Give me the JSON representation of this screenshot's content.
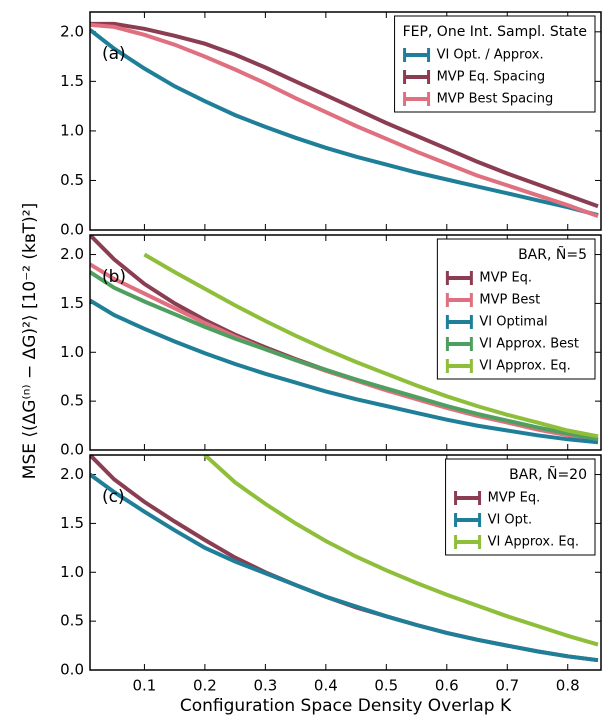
{
  "chart_data": [
    {
      "type": "line",
      "label": "(a)",
      "legend_title": "FEP, One Int. Sampl. State",
      "legend_loc": "upper right",
      "x": [
        0.01,
        0.05,
        0.1,
        0.15,
        0.2,
        0.25,
        0.3,
        0.35,
        0.4,
        0.45,
        0.5,
        0.55,
        0.6,
        0.65,
        0.7,
        0.75,
        0.8,
        0.85
      ],
      "xlim": [
        0.01,
        0.855
      ],
      "ylim": [
        0,
        2.2
      ],
      "yticks": [
        {
          "value": 0,
          "label": "0.0"
        },
        {
          "value": 0.5,
          "label": "0.5"
        },
        {
          "value": 1,
          "label": "1.0"
        },
        {
          "value": 1.5,
          "label": "1.5"
        },
        {
          "value": 2,
          "label": "2.0"
        }
      ],
      "series": [
        {
          "name": "VI Opt. / Approx.",
          "color": "#1f7f99",
          "values": [
            2.02,
            1.83,
            1.63,
            1.45,
            1.3,
            1.16,
            1.04,
            0.93,
            0.83,
            0.74,
            0.66,
            0.58,
            0.51,
            0.44,
            0.37,
            0.3,
            0.23,
            0.15
          ]
        },
        {
          "name": "MVP Eq. Spacing",
          "color": "#8b3d52",
          "values": [
            2.08,
            2.08,
            2.03,
            1.96,
            1.88,
            1.77,
            1.64,
            1.5,
            1.36,
            1.22,
            1.08,
            0.95,
            0.82,
            0.69,
            0.57,
            0.46,
            0.35,
            0.24
          ]
        },
        {
          "name": "MVP Best Spacing",
          "color": "#e07080",
          "values": [
            2.07,
            2.05,
            1.97,
            1.87,
            1.75,
            1.62,
            1.48,
            1.33,
            1.19,
            1.05,
            0.92,
            0.79,
            0.67,
            0.55,
            0.45,
            0.35,
            0.25,
            0.14
          ]
        }
      ]
    },
    {
      "type": "line",
      "label": "(b)",
      "legend_title": "BAR, Ñ=5",
      "legend_loc": "upper right",
      "ylabel": "MSE  ⟨(ΔG⁽ⁿ⁾ − ΔG)²⟩  [10⁻² (kʙT)²]",
      "x": [
        0.01,
        0.05,
        0.1,
        0.15,
        0.2,
        0.25,
        0.3,
        0.35,
        0.4,
        0.45,
        0.5,
        0.55,
        0.6,
        0.65,
        0.7,
        0.75,
        0.8,
        0.85
      ],
      "xlim": [
        0.01,
        0.855
      ],
      "ylim": [
        0,
        2.2
      ],
      "yticks": [
        {
          "value": 0,
          "label": "0.0"
        },
        {
          "value": 0.5,
          "label": "0.5"
        },
        {
          "value": 1,
          "label": "1.0"
        },
        {
          "value": 1.5,
          "label": "1.5"
        },
        {
          "value": 2,
          "label": "2.0"
        }
      ],
      "series": [
        {
          "name": "MVP Eq.",
          "color": "#8b3d52",
          "values": [
            2.2,
            1.95,
            1.7,
            1.5,
            1.33,
            1.18,
            1.05,
            0.93,
            0.82,
            0.72,
            0.62,
            0.53,
            0.44,
            0.36,
            0.29,
            0.22,
            0.16,
            0.11
          ]
        },
        {
          "name": "MVP Best",
          "color": "#e07080",
          "values": [
            1.9,
            1.75,
            1.6,
            1.45,
            1.3,
            1.16,
            1.03,
            0.92,
            0.81,
            0.71,
            0.61,
            0.52,
            0.43,
            0.35,
            0.28,
            0.21,
            0.15,
            0.1
          ]
        },
        {
          "name": "VI Optimal",
          "color": "#1f7f99",
          "values": [
            1.53,
            1.38,
            1.24,
            1.11,
            0.99,
            0.88,
            0.78,
            0.69,
            0.6,
            0.52,
            0.45,
            0.38,
            0.31,
            0.25,
            0.2,
            0.15,
            0.11,
            0.08
          ]
        },
        {
          "name": "VI Approx. Best",
          "color": "#4fa060",
          "values": [
            1.82,
            1.66,
            1.52,
            1.39,
            1.26,
            1.14,
            1.03,
            0.92,
            0.82,
            0.72,
            0.63,
            0.54,
            0.45,
            0.37,
            0.3,
            0.23,
            0.17,
            0.11
          ]
        },
        {
          "name": "VI Approx. Eq.",
          "color": "#8fbf3a",
          "values": [
            null,
            null,
            2.0,
            1.82,
            1.65,
            1.48,
            1.32,
            1.17,
            1.03,
            0.9,
            0.78,
            0.66,
            0.55,
            0.45,
            0.36,
            0.28,
            0.2,
            0.14
          ]
        }
      ]
    },
    {
      "type": "line",
      "label": "(c)",
      "legend_title": "BAR, Ñ=20",
      "legend_loc": "upper right",
      "xlabel": "Configuration Space Density Overlap K",
      "x": [
        0.01,
        0.05,
        0.1,
        0.15,
        0.2,
        0.25,
        0.3,
        0.35,
        0.4,
        0.45,
        0.5,
        0.55,
        0.6,
        0.65,
        0.7,
        0.75,
        0.8,
        0.85
      ],
      "xlim": [
        0.01,
        0.855
      ],
      "ylim": [
        0,
        2.2
      ],
      "xticks": [
        0.1,
        0.2,
        0.3,
        0.4,
        0.5,
        0.6,
        0.7,
        0.8
      ],
      "yticks": [
        {
          "value": 0,
          "label": "0.0"
        },
        {
          "value": 0.5,
          "label": "0.5"
        },
        {
          "value": 1,
          "label": "1.0"
        },
        {
          "value": 1.5,
          "label": "1.5"
        },
        {
          "value": 2,
          "label": "2.0"
        }
      ],
      "series": [
        {
          "name": "MVP Eq.",
          "color": "#8b3d52",
          "values": [
            2.2,
            1.95,
            1.72,
            1.52,
            1.33,
            1.15,
            1.0,
            0.87,
            0.75,
            0.64,
            0.55,
            0.46,
            0.38,
            0.31,
            0.25,
            0.19,
            0.14,
            0.1
          ]
        },
        {
          "name": "VI Opt.",
          "color": "#1f7f99",
          "values": [
            2.0,
            1.82,
            1.62,
            1.43,
            1.25,
            1.11,
            0.99,
            0.87,
            0.75,
            0.65,
            0.55,
            0.46,
            0.38,
            0.31,
            0.25,
            0.19,
            0.14,
            0.1
          ]
        },
        {
          "name": "VI Approx. Eq.",
          "color": "#8fbf3a",
          "values": [
            null,
            null,
            null,
            null,
            2.2,
            1.92,
            1.7,
            1.5,
            1.32,
            1.16,
            1.02,
            0.89,
            0.77,
            0.66,
            0.55,
            0.45,
            0.35,
            0.26
          ]
        }
      ]
    }
  ]
}
